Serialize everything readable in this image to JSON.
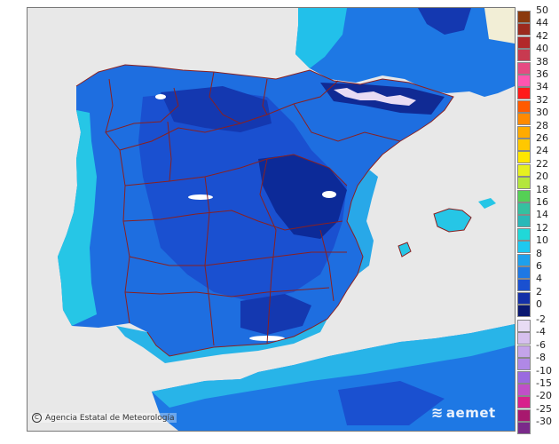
{
  "credit_text": "Agencia Estatal de Meteorología",
  "logo_text": "aemet",
  "colors": {
    "sea": "#e8e8e8",
    "land_cyan": "#26c6e6",
    "land_light": "#28a8e8",
    "land_mid": "#1e6ee0",
    "land_dark": "#1a44c8",
    "land_darkest": "#0c2a98",
    "border": "#8a2020"
  },
  "legend": {
    "positive": [
      {
        "label": "50",
        "color": "#8b3a0e"
      },
      {
        "label": "44",
        "color": "#9c2a1e"
      },
      {
        "label": "42",
        "color": "#b2282a"
      },
      {
        "label": "40",
        "color": "#c83a50"
      },
      {
        "label": "38",
        "color": "#e64a82"
      },
      {
        "label": "36",
        "color": "#ff55b0"
      },
      {
        "label": "34",
        "color": "#ff1a1a"
      },
      {
        "label": "32",
        "color": "#ff5a00"
      },
      {
        "label": "30",
        "color": "#ff8a00"
      },
      {
        "label": "28",
        "color": "#ffab00"
      },
      {
        "label": "26",
        "color": "#ffc800"
      },
      {
        "label": "24",
        "color": "#ffe600"
      },
      {
        "label": "22",
        "color": "#e6f020"
      },
      {
        "label": "20",
        "color": "#b4e63c"
      },
      {
        "label": "18",
        "color": "#55d055"
      },
      {
        "label": "16",
        "color": "#35c0a0"
      },
      {
        "label": "14",
        "color": "#2ab8b8"
      },
      {
        "label": "12",
        "color": "#20d8d8"
      },
      {
        "label": "10",
        "color": "#1ec8f0"
      },
      {
        "label": "8",
        "color": "#1ea0ec"
      },
      {
        "label": "6",
        "color": "#1e78e4"
      },
      {
        "label": "4",
        "color": "#1a50d0"
      },
      {
        "label": "2",
        "color": "#1430a8"
      },
      {
        "label": "0",
        "color": "#0a1870"
      }
    ],
    "negative": [
      {
        "label": "-2",
        "color": "#e8dcf4"
      },
      {
        "label": "-4",
        "color": "#d6c0ee"
      },
      {
        "label": "-6",
        "color": "#c4a4ea"
      },
      {
        "label": "-8",
        "color": "#b088e6"
      },
      {
        "label": "-10",
        "color": "#9a6ae0"
      },
      {
        "label": "-15",
        "color": "#c050c8"
      },
      {
        "label": "-20",
        "color": "#d8208c"
      },
      {
        "label": "-25",
        "color": "#a8186e"
      },
      {
        "label": "-30",
        "color": "#7a2a8a"
      }
    ]
  }
}
